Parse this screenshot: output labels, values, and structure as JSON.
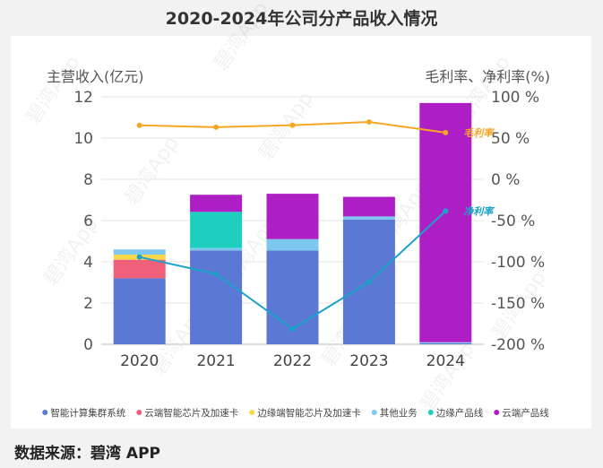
{
  "chart_data": {
    "type": "bar",
    "subtype": "stacked bar with dual-axis lines",
    "title": "2020-2024年公司分产品收入情况",
    "ylabel": "主营收入(亿元)",
    "y2label": "毛利率、净利率(%)",
    "ylim": [
      0,
      12
    ],
    "y2lim": [
      -200,
      100
    ],
    "yticks": [
      "0",
      "2",
      "4",
      "6",
      "8",
      "10",
      "12"
    ],
    "y2ticks": [
      "100 %",
      "50 %",
      "0 %",
      "-50 %",
      "-100 %",
      "-150 %",
      "-200 %"
    ],
    "categories": [
      "2020",
      "2021",
      "2022",
      "2023",
      "2024"
    ],
    "series": [
      {
        "name": "智能计算集群系统",
        "color": "#5b78d4",
        "values": [
          3.2,
          4.55,
          4.55,
          6.05,
          0.05
        ]
      },
      {
        "name": "云端智能芯片及加速卡",
        "color": "#f0607a",
        "values": [
          0.9,
          0.0,
          0.0,
          0.0,
          0.0
        ]
      },
      {
        "name": "边缘端智能芯片及加速卡",
        "color": "#f7d84a",
        "values": [
          0.25,
          0.0,
          0.0,
          0.0,
          0.0
        ]
      },
      {
        "name": "其他业务",
        "color": "#7ec8f0",
        "values": [
          0.25,
          0.12,
          0.55,
          0.15,
          0.05
        ]
      },
      {
        "name": "边缘产品线",
        "color": "#1ecfc0",
        "values": [
          0.0,
          1.75,
          0.0,
          0.0,
          0.0
        ]
      },
      {
        "name": "云端产品线",
        "color": "#ad1fc4",
        "values": [
          0.0,
          0.83,
          2.2,
          0.95,
          11.6
        ]
      }
    ],
    "lines": [
      {
        "name": "毛利率",
        "label": "毛利率",
        "color": "#f5a623",
        "axis": "right",
        "values": [
          65.5,
          63.2,
          65.6,
          69.5,
          56.7
        ]
      },
      {
        "name": "净利率",
        "label": "净利率",
        "color": "#1aa3c8",
        "axis": "right",
        "values": [
          -94.2,
          -114.7,
          -181.5,
          -124.4,
          -38.5
        ]
      }
    ]
  },
  "watermark": "碧湾App",
  "footer": "数据来源：碧湾 APP"
}
